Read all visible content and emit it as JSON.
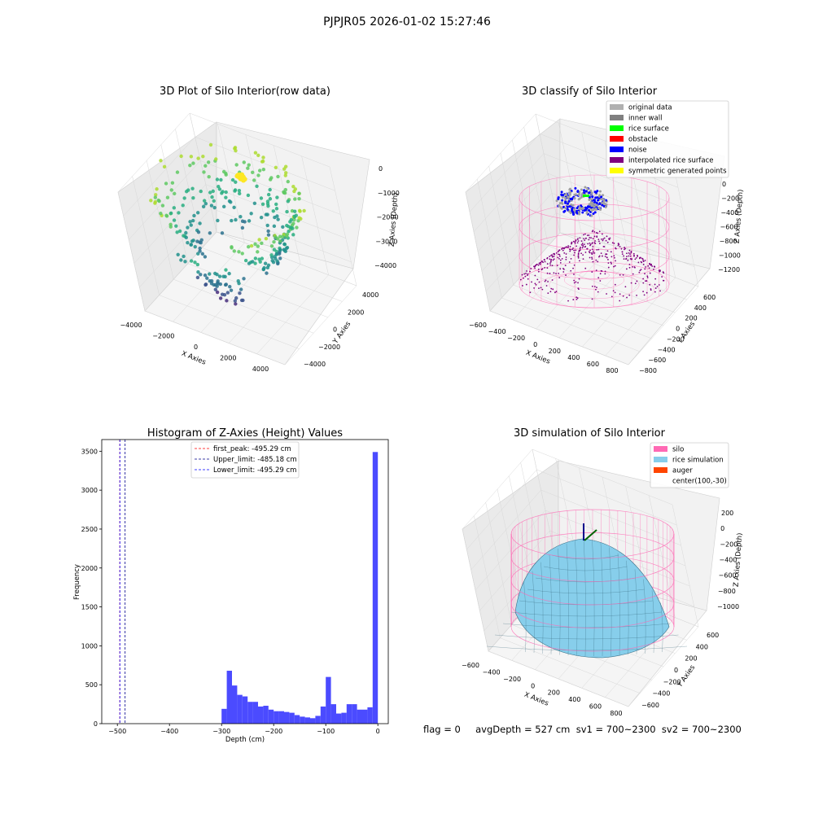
{
  "suptitle": "PJPJR05 2026-01-02 15:27:46",
  "status": {
    "text": "flag = 0     avgDepth = 527 cm  sv1 = 700~2300  sv2 = 700~2300"
  },
  "colors": {
    "pane": "#f2f2f2",
    "grid": "#d8d8d8",
    "silo": "#ff69b4",
    "rice": "#87ceeb",
    "auger": "#ff4500",
    "hist": "#4b4bff"
  },
  "chart_data": [
    {
      "type": "scatter",
      "projection": "3d",
      "title": "3D Plot of Silo Interior(row data)",
      "xlabel": "X Axies",
      "ylabel": "Y Axies",
      "zlabel": "Z Axies (Depth)",
      "x_ticks": [
        "−4000",
        "−2000",
        "0",
        "2000",
        "4000"
      ],
      "y_ticks": [
        "−4000",
        "−2000",
        "0",
        "2000",
        "4000"
      ],
      "z_ticks": [
        "0",
        "−1000",
        "−2000",
        "−3000",
        "−4000"
      ],
      "xlim": [
        -4500,
        4500
      ],
      "ylim": [
        -4500,
        4500
      ],
      "zlim": [
        -4500,
        0
      ],
      "grid": true,
      "colormap": "viridis by depth"
    },
    {
      "type": "scatter",
      "projection": "3d",
      "title": "3D classify of Silo Interior",
      "xlabel": "X Axies",
      "ylabel": "Y Axies",
      "zlabel": "Z Axies (Depth)",
      "x_ticks": [
        "−600",
        "−400",
        "−200",
        "0",
        "200",
        "400",
        "600",
        "800"
      ],
      "y_ticks": [
        "−800",
        "−600",
        "−400",
        "−200",
        "0",
        "200",
        "400",
        "600"
      ],
      "z_ticks": [
        "0",
        "−200",
        "−400",
        "−600",
        "−800",
        "−1000",
        "−1200"
      ],
      "grid": true,
      "legend_position": "top-right",
      "legend": [
        {
          "label": "original data",
          "color": "#b0b0b0"
        },
        {
          "label": "inner wall",
          "color": "#808080"
        },
        {
          "label": "rice surface",
          "color": "#00ff00"
        },
        {
          "label": "obstacle",
          "color": "#ff0000"
        },
        {
          "label": "noise",
          "color": "#0000ff"
        },
        {
          "label": "interpolated rice surface",
          "color": "#800080"
        },
        {
          "label": "symmetric generated points",
          "color": "#ffff00"
        }
      ]
    },
    {
      "type": "bar",
      "title": "Histogram of Z-Axies (Height) Values",
      "xlabel": "Depth (cm)",
      "ylabel": "Frequency",
      "xlim": [
        -530,
        20
      ],
      "ylim": [
        0,
        3650
      ],
      "x_ticks": [
        -500,
        -400,
        -300,
        -200,
        -100,
        0
      ],
      "y_ticks": [
        0,
        500,
        1000,
        1500,
        2000,
        2500,
        3000,
        3500
      ],
      "bin_width": 10,
      "bin_starts": [
        -300,
        -290,
        -280,
        -270,
        -260,
        -250,
        -240,
        -230,
        -220,
        -210,
        -200,
        -190,
        -180,
        -170,
        -160,
        -150,
        -140,
        -130,
        -120,
        -110,
        -100,
        -90,
        -80,
        -70,
        -60,
        -50,
        -40,
        -30,
        -20,
        -10
      ],
      "values": [
        190,
        680,
        490,
        370,
        350,
        280,
        280,
        220,
        230,
        180,
        160,
        160,
        150,
        140,
        110,
        90,
        80,
        70,
        100,
        220,
        600,
        250,
        130,
        140,
        250,
        250,
        180,
        180,
        210,
        3490
      ],
      "lines": [
        {
          "label": "first_peak: -495.29 cm",
          "x": -495.29,
          "color": "#ff0000"
        },
        {
          "label": "Upper_limit: -485.18 cm",
          "x": -485.18,
          "color": "#00008b"
        },
        {
          "label": "Lower_limit: -495.29 cm",
          "x": -495.29,
          "color": "#0000ff"
        }
      ],
      "legend_position": "upper-center"
    },
    {
      "type": "surface",
      "projection": "3d",
      "title": "3D simulation of Silo Interior",
      "xlabel": "X Axies",
      "ylabel": "Y Axies",
      "zlabel": "Z Axies (Depth)",
      "x_ticks": [
        "−600",
        "−400",
        "−200",
        "0",
        "200",
        "400",
        "600",
        "800"
      ],
      "y_ticks": [
        "−600",
        "−400",
        "−200",
        "0",
        "200",
        "400",
        "600"
      ],
      "z_ticks": [
        "200",
        "0",
        "−200",
        "−400",
        "−600",
        "−800",
        "−1000"
      ],
      "grid": true,
      "legend_position": "top-right",
      "legend": [
        {
          "label": "silo",
          "color": "#ff69b4"
        },
        {
          "label": "rice simulation",
          "color": "#87ceeb"
        },
        {
          "label": "auger",
          "color": "#ff4500"
        },
        {
          "label": "center(100,-30)",
          "color": ""
        }
      ]
    }
  ]
}
